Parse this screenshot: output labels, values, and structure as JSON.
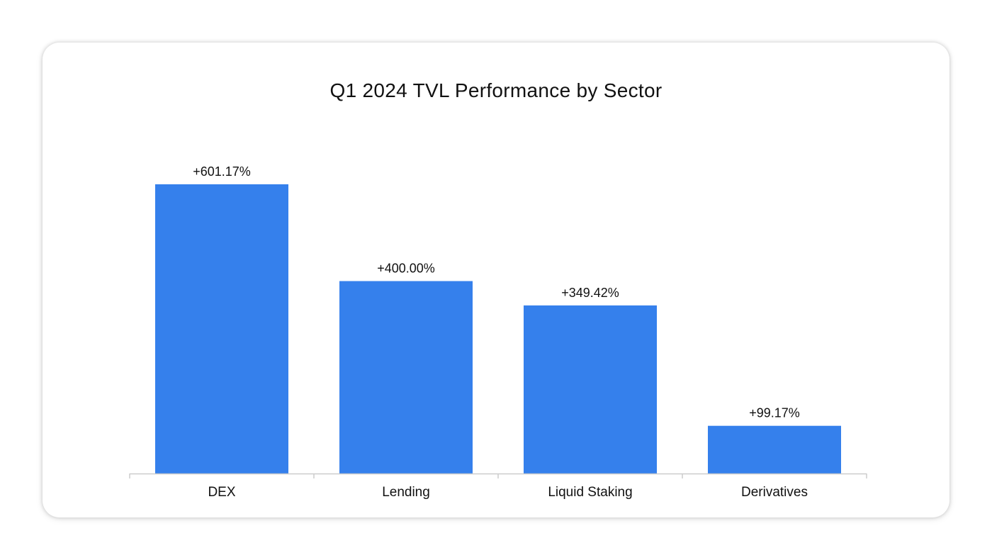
{
  "chart_data": {
    "type": "bar",
    "title": "Q1 2024 TVL Performance by Sector",
    "categories": [
      "DEX",
      "Lending",
      "Liquid Staking",
      "Derivatives"
    ],
    "values": [
      601.17,
      400.0,
      349.42,
      99.17
    ],
    "data_labels": [
      "+601.17%",
      "+400.00%",
      "+349.42%",
      "+99.17%"
    ],
    "unit": "%",
    "xlabel": "",
    "ylabel": "",
    "ylim": [
      0,
      601.17
    ],
    "grid": false,
    "legend": "none",
    "colors": {
      "bar": "#3580EC",
      "axis": "#CCCCCC",
      "text": "#111111"
    }
  }
}
